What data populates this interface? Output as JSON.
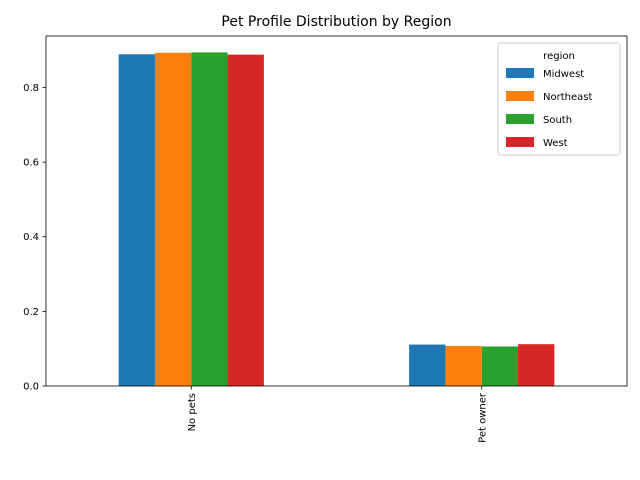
{
  "chart_data": {
    "type": "bar",
    "title": "Pet Profile Distribution by Region",
    "xlabel": "",
    "ylabel": "",
    "categories": [
      "No pets",
      "Pet owner"
    ],
    "series": [
      {
        "name": "Midwest",
        "color": "#1f77b4",
        "values": [
          0.889,
          0.111
        ]
      },
      {
        "name": "Northeast",
        "color": "#ff7f0e",
        "values": [
          0.893,
          0.107
        ]
      },
      {
        "name": "South",
        "color": "#2ca02c",
        "values": [
          0.894,
          0.106
        ]
      },
      {
        "name": "West",
        "color": "#d62728",
        "values": [
          0.888,
          0.112
        ]
      }
    ],
    "ylim": [
      0,
      0.938
    ],
    "yticks": [
      "0.0",
      "0.2",
      "0.4",
      "0.6",
      "0.8"
    ],
    "legend": {
      "title": "region",
      "placement": "top-right"
    },
    "grid": false
  }
}
